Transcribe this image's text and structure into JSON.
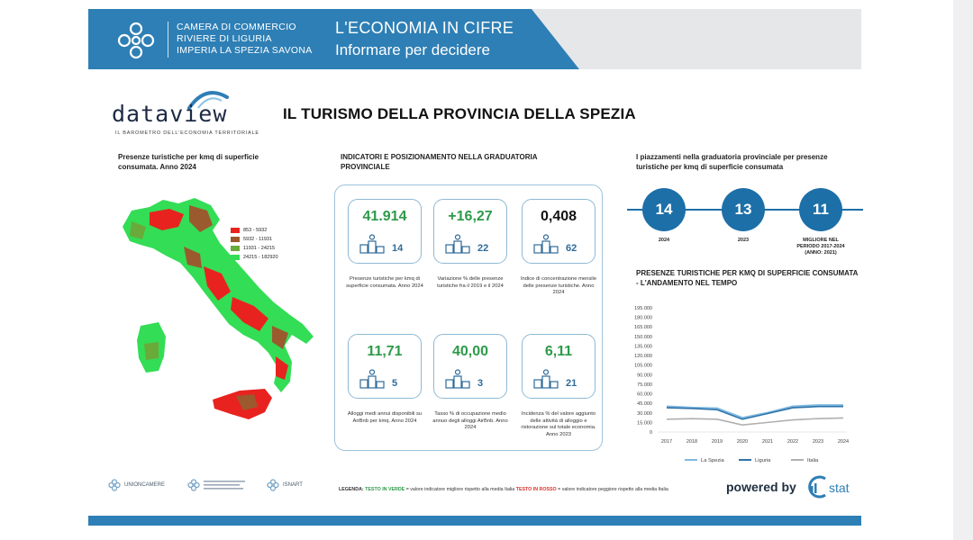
{
  "header": {
    "org_lines": [
      "CAMERA DI COMMERCIO",
      "RIVIERE DI LIGURIA",
      "IMPERIA LA SPEZIA SAVONA"
    ],
    "title": "L'ECONOMIA IN CIFRE",
    "subtitle": "Informare per decidere"
  },
  "brand": {
    "name": "dataview",
    "tagline": "IL BAROMETRO DELL'ECONOMIA TERRITORIALE"
  },
  "page_title": "IL TURISMO DELLA PROVINCIA DELLA SPEZIA",
  "map": {
    "title": "Presenze turistiche per kmq di superficie consumata. Anno 2024",
    "legend": [
      {
        "label": "853 - 5932",
        "color": "#e8231f"
      },
      {
        "label": "5932 - 11931",
        "color": "#9a5a2e"
      },
      {
        "label": "11931 - 24215",
        "color": "#6aaa3a"
      },
      {
        "label": "24215 - 182920",
        "color": "#33dd55"
      }
    ]
  },
  "indicators": {
    "title": "INDICATORI E POSIZIONAMENTO NELLA GRADUATORIA PROVINCIALE",
    "cards": [
      {
        "value": "41.914",
        "rank": "14",
        "color": "green",
        "desc": "Presenze turistiche per kmq di superficie consumata. Anno 2024"
      },
      {
        "value": "+16,27",
        "rank": "22",
        "color": "green",
        "desc": "Variazione % delle presenze turistiche fra il 2019 e il 2024"
      },
      {
        "value": "0,408",
        "rank": "62",
        "color": "black",
        "desc": "Indice di concentrazione mensile delle presenze turistiche. Anno 2024"
      },
      {
        "value": "11,71",
        "rank": "5",
        "color": "green",
        "desc": "Alloggi medi annui disponibili su AirBnb per kmq. Anno 2024"
      },
      {
        "value": "40,00",
        "rank": "3",
        "color": "green",
        "desc": "Tasso % di occupazione medio annuo degli alloggi AirBnb. Anno 2024"
      },
      {
        "value": "6,11",
        "rank": "21",
        "color": "green",
        "desc": "Incidenza % del valore aggiunto delle attività di alloggio e ristorazione sul totale economia. Anno 2023"
      }
    ]
  },
  "rankings": {
    "title": "I piazzamenti nella graduatoria provinciale per presenze turistiche per kmq di superficie consumata",
    "items": [
      {
        "value": "14",
        "label": "2024"
      },
      {
        "value": "13",
        "label": "2023"
      },
      {
        "value": "11",
        "label": "MIGLIORE NEL PERIODO 2017-2024 (ANNO: 2021)"
      }
    ]
  },
  "chart_data": {
    "type": "line",
    "title": "PRESENZE TURISTICHE PER KMQ DI SUPERFICIE CONSUMATA - L'ANDAMENTO NEL TEMPO",
    "x": [
      "2017",
      "2018",
      "2019",
      "2020",
      "2021",
      "2022",
      "2023",
      "2024"
    ],
    "ylim": [
      0,
      195000
    ],
    "yticks": [
      "195.000",
      "180.000",
      "165.000",
      "150.000",
      "135.000",
      "120.000",
      "105.000",
      "90.000",
      "75.000",
      "60.000",
      "45.000",
      "30.000",
      "15.000",
      "0"
    ],
    "series": [
      {
        "name": "La Spezia",
        "color": "#7fb8e0",
        "values": [
          40000,
          38000,
          37000,
          22000,
          30000,
          40000,
          42000,
          41914
        ]
      },
      {
        "name": "Liguria",
        "color": "#2f74aa",
        "values": [
          38000,
          37000,
          35000,
          20000,
          29000,
          38000,
          40000,
          40000
        ]
      },
      {
        "name": "Italia",
        "color": "#b0b0b0",
        "values": [
          20000,
          21000,
          20000,
          11000,
          15000,
          19000,
          21000,
          22000
        ]
      }
    ],
    "legend_position": "bottom"
  },
  "footer": {
    "logos": [
      "UNIONCAMERE",
      "ISNART"
    ],
    "legend_prefix": "LEGENDA:",
    "legend_green": "TESTO IN VERDE",
    "legend_green_text": " = valore indicatore migliore rispetto alla media Italia ",
    "legend_red": "TESTO IN ROSSO",
    "legend_red_text": " = valore indicatore peggiore rispetto alla media Italia",
    "powered": "powered by",
    "istat_text": "stat"
  },
  "colors": {
    "header_blue": "#2e7fb5",
    "accent_blue": "#1d6fa8",
    "green": "#2e9a4a",
    "red": "#d8322d"
  }
}
